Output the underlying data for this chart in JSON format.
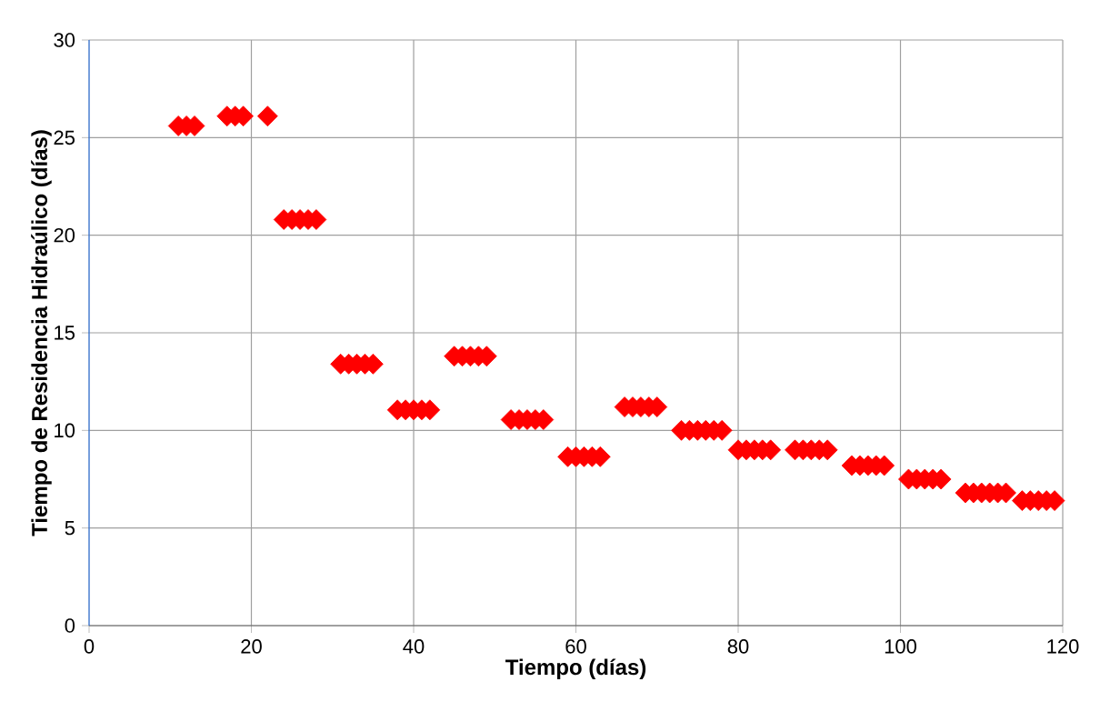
{
  "chart_data": {
    "type": "scatter",
    "xlabel": "Tiempo (días)",
    "ylabel": "Tiempo de Residencia Hidraúlico (días)",
    "xlim": [
      0,
      120
    ],
    "xticks": [
      0,
      20,
      40,
      60,
      80,
      100,
      120
    ],
    "ylim": [
      0,
      30
    ],
    "yticks": [
      0,
      5,
      10,
      15,
      20,
      25,
      30
    ],
    "grid": true,
    "marker": "diamond",
    "series": [
      {
        "color": "#ff0000",
        "x": [
          11,
          12,
          13,
          17,
          18,
          19,
          22,
          24,
          25,
          26,
          27,
          28,
          31,
          32,
          33,
          34,
          35,
          38,
          39,
          40,
          41,
          42,
          45,
          46,
          47,
          48,
          49,
          52,
          53,
          54,
          55,
          56,
          59,
          60,
          61,
          62,
          63,
          66,
          67,
          68,
          69,
          70,
          73,
          74,
          75,
          76,
          77,
          78,
          80,
          81,
          82,
          83,
          84,
          87,
          88,
          89,
          90,
          91,
          94,
          95,
          96,
          97,
          98,
          101,
          102,
          103,
          104,
          105,
          108,
          109,
          110,
          111,
          112,
          113,
          115,
          116,
          117,
          118,
          119
        ],
        "values": [
          25.6,
          25.6,
          25.6,
          26.1,
          26.1,
          26.1,
          26.1,
          20.8,
          20.8,
          20.8,
          20.8,
          20.8,
          13.4,
          13.4,
          13.4,
          13.4,
          13.4,
          11.05,
          11.05,
          11.05,
          11.05,
          11.05,
          13.8,
          13.8,
          13.8,
          13.8,
          13.8,
          10.55,
          10.55,
          10.55,
          10.55,
          10.55,
          8.65,
          8.65,
          8.65,
          8.65,
          8.65,
          11.2,
          11.2,
          11.2,
          11.2,
          11.2,
          10,
          10,
          10,
          10,
          10,
          10,
          9,
          9,
          9,
          9,
          9,
          9,
          9,
          9,
          9,
          9,
          8.2,
          8.2,
          8.2,
          8.2,
          8.2,
          7.5,
          7.5,
          7.5,
          7.5,
          7.5,
          6.8,
          6.8,
          6.8,
          6.8,
          6.8,
          6.8,
          6.4,
          6.4,
          6.4,
          6.4,
          6.4
        ]
      }
    ]
  }
}
